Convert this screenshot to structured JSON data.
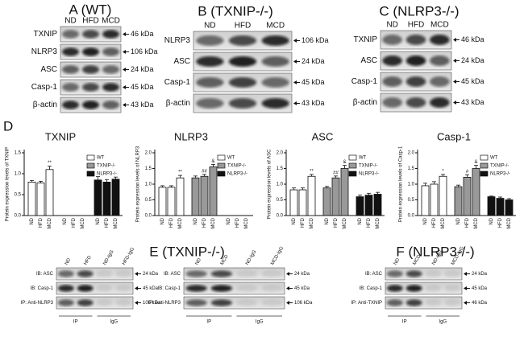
{
  "panels": {
    "A": {
      "title": "A (WT)",
      "lanes": [
        "ND",
        "HFD",
        "MCD"
      ],
      "rows": [
        {
          "label": "TXNIP",
          "kda": "46 kDa"
        },
        {
          "label": "NLRP3",
          "kda": "106 kDa"
        },
        {
          "label": "ASC",
          "kda": "24 kDa"
        },
        {
          "label": "Casp-1",
          "kda": "45 kDa"
        },
        {
          "label": "β-actin",
          "kda": "43 kDa"
        }
      ]
    },
    "B": {
      "title": "B (TXNIP-/-)",
      "lanes": [
        "ND",
        "HFD",
        "MCD"
      ],
      "rows": [
        {
          "label": "NLRP3",
          "kda": "106 kDa"
        },
        {
          "label": "ASC",
          "kda": "24 kDa"
        },
        {
          "label": "Casp-1",
          "kda": "45 kDa"
        },
        {
          "label": "β-actin",
          "kda": "43 kDa"
        }
      ]
    },
    "C": {
      "title": "C (NLRP3-/-)",
      "lanes": [
        "ND",
        "HFD",
        "MCD"
      ],
      "rows": [
        {
          "label": "TXNIP",
          "kda": "46 kDa"
        },
        {
          "label": "ASC",
          "kda": "24 kDa"
        },
        {
          "label": "Casp-1",
          "kda": "45 kDa"
        },
        {
          "label": "β-actin",
          "kda": "43 kDa"
        }
      ]
    },
    "D": {
      "label": "D"
    },
    "E": {
      "title": "E (TXNIP-/-)",
      "blots": [
        {
          "lanes": [
            "ND",
            "HFD",
            "ND-IgG",
            "HFD-IgG"
          ],
          "groups": [
            "IP",
            "IgG"
          ],
          "rows": [
            {
              "label": "IB: ASC",
              "kda": "24 kDa"
            },
            {
              "label": "IB: Casp-1",
              "kda": "45 kDa"
            },
            {
              "label": "IP: Anti-NLRP3",
              "kda": "106 kDa"
            }
          ]
        },
        {
          "lanes": [
            "ND",
            "MCD",
            "ND-IgG",
            "MCD-IgG"
          ],
          "groups": [
            "IP",
            "IgG"
          ],
          "rows": [
            {
              "label": "IB: ASC",
              "kda": "24 kDa"
            },
            {
              "label": "IB: Casp-1",
              "kda": "45 kDa"
            },
            {
              "label": "IP: Anti-NLRP3",
              "kda": "106 kDa"
            }
          ]
        }
      ]
    },
    "F": {
      "title": "F (NLRP3-/-)",
      "blots": [
        {
          "lanes": [
            "ND",
            "MCD",
            "ND-IgG",
            "MCD-IgG"
          ],
          "groups": [
            "IP",
            "IgG"
          ],
          "rows": [
            {
              "label": "IB: ASC",
              "kda": "24 kDa"
            },
            {
              "label": "IB: Casp-1",
              "kda": "45 kDa"
            },
            {
              "label": "IP: Anti-TXNIP",
              "kda": "46 kDa"
            }
          ]
        }
      ]
    }
  },
  "chart_data": [
    {
      "type": "bar",
      "title": "TXNIP",
      "y_label": "Protein expression levels of TXNIP",
      "categories": [
        "ND",
        "HFD",
        "MCD",
        "ND",
        "HFD",
        "MCD",
        "ND",
        "HFD",
        "MCD"
      ],
      "ylim": [
        0,
        1.5
      ],
      "yticks": [
        {
          "value": 0,
          "label": "0.0"
        },
        {
          "value": 0.5,
          "label": "0.5"
        },
        {
          "value": 1,
          "label": "1.0"
        },
        {
          "value": 1.5,
          "label": "1.5"
        }
      ],
      "series": [
        {
          "name": "WT",
          "color": "#ffffff",
          "values": [
            0.8,
            0.78,
            1.1,
            null,
            null,
            null,
            null,
            null,
            null
          ],
          "errors": [
            0.04,
            0.04,
            0.08,
            null,
            null,
            null,
            null,
            null,
            null
          ],
          "annotations": [
            null,
            null,
            "**",
            null,
            null,
            null,
            null,
            null,
            null
          ]
        },
        {
          "name": "TXNIP-/-",
          "color": "#999999",
          "values": [
            null,
            null,
            null,
            null,
            null,
            null,
            null,
            null,
            null
          ],
          "errors": [
            null,
            null,
            null,
            null,
            null,
            null,
            null,
            null,
            null
          ],
          "annotations": [
            null,
            null,
            null,
            null,
            null,
            null,
            null,
            null,
            null
          ]
        },
        {
          "name": "NLRP3-/-",
          "color": "#111111",
          "values": [
            null,
            null,
            null,
            null,
            null,
            null,
            0.85,
            0.8,
            0.87
          ],
          "errors": [
            null,
            null,
            null,
            null,
            null,
            null,
            0.08,
            0.06,
            0.05
          ],
          "annotations": [
            null,
            null,
            null,
            null,
            null,
            null,
            null,
            null,
            null
          ]
        }
      ]
    },
    {
      "type": "bar",
      "title": "NLRP3",
      "y_label": "Protein expression levels of NLRP3",
      "categories": [
        "ND",
        "HFD",
        "MCD",
        "ND",
        "HFD",
        "MCD",
        "ND",
        "HFD",
        "MCD"
      ],
      "ylim": [
        0,
        2
      ],
      "yticks": [
        {
          "value": 0,
          "label": "0.0"
        },
        {
          "value": 0.5,
          "label": "0.5"
        },
        {
          "value": 1,
          "label": "1.0"
        },
        {
          "value": 1.5,
          "label": "1.5"
        },
        {
          "value": 2,
          "label": "2.0"
        }
      ],
      "series": [
        {
          "name": "WT",
          "color": "#ffffff",
          "values": [
            0.9,
            0.9,
            1.2,
            null,
            null,
            null,
            null,
            null,
            null
          ],
          "errors": [
            0.05,
            0.05,
            0.08,
            null,
            null,
            null,
            null,
            null,
            null
          ],
          "annotations": [
            null,
            null,
            "**",
            null,
            null,
            null,
            null,
            null,
            null
          ]
        },
        {
          "name": "TXNIP-/-",
          "color": "#999999",
          "values": [
            null,
            null,
            null,
            1.2,
            1.25,
            1.55,
            null,
            null,
            null
          ],
          "errors": [
            null,
            null,
            null,
            0.06,
            0.06,
            0.08,
            null,
            null,
            null
          ],
          "annotations": [
            null,
            null,
            null,
            null,
            "##",
            "&",
            null,
            null,
            null
          ]
        },
        {
          "name": "NLRP3-/-",
          "color": "#111111",
          "values": [
            null,
            null,
            null,
            null,
            null,
            null,
            null,
            null,
            null
          ],
          "errors": [
            null,
            null,
            null,
            null,
            null,
            null,
            null,
            null,
            null
          ],
          "annotations": [
            null,
            null,
            null,
            null,
            null,
            null,
            null,
            null,
            null
          ]
        }
      ]
    },
    {
      "type": "bar",
      "title": "ASC",
      "y_label": "Protein expression levels of ASC",
      "categories": [
        "ND",
        "HFD",
        "MCD",
        "ND",
        "HFD",
        "MCD",
        "ND",
        "HFD",
        "MCD"
      ],
      "ylim": [
        0,
        2
      ],
      "yticks": [
        {
          "value": 0,
          "label": "0.0"
        },
        {
          "value": 0.5,
          "label": "0.5"
        },
        {
          "value": 1,
          "label": "1.0"
        },
        {
          "value": 1.5,
          "label": "1.5"
        },
        {
          "value": 2,
          "label": "2.0"
        }
      ],
      "series": [
        {
          "name": "WT",
          "color": "#ffffff",
          "values": [
            0.82,
            0.82,
            1.25,
            null,
            null,
            null,
            null,
            null,
            null
          ],
          "errors": [
            0.06,
            0.06,
            0.06,
            null,
            null,
            null,
            null,
            null,
            null
          ],
          "annotations": [
            null,
            null,
            "**",
            null,
            null,
            null,
            null,
            null,
            null
          ]
        },
        {
          "name": "TXNIP-/-",
          "color": "#999999",
          "values": [
            null,
            null,
            null,
            0.88,
            1.2,
            1.5,
            null,
            null,
            null
          ],
          "errors": [
            null,
            null,
            null,
            0.05,
            0.06,
            0.1,
            null,
            null,
            null
          ],
          "annotations": [
            null,
            null,
            null,
            null,
            "##",
            "&",
            null,
            null,
            null
          ]
        },
        {
          "name": "NLRP3-/-",
          "color": "#111111",
          "values": [
            null,
            null,
            null,
            null,
            null,
            null,
            0.6,
            0.65,
            0.68
          ],
          "errors": [
            null,
            null,
            null,
            null,
            null,
            null,
            0.05,
            0.06,
            0.06
          ],
          "annotations": [
            null,
            null,
            null,
            null,
            null,
            null,
            null,
            null,
            null
          ]
        }
      ]
    },
    {
      "type": "bar",
      "title": "Casp-1",
      "y_label": "Protein expression levels of Casp-1",
      "categories": [
        "ND",
        "HFD",
        "MCD",
        "ND",
        "HFD",
        "MCD",
        "ND",
        "HFD",
        "MCD"
      ],
      "ylim": [
        0,
        2
      ],
      "yticks": [
        {
          "value": 0,
          "label": "0.0"
        },
        {
          "value": 0.5,
          "label": "0.5"
        },
        {
          "value": 1,
          "label": "1.0"
        },
        {
          "value": 1.5,
          "label": "1.5"
        },
        {
          "value": 2,
          "label": "2.0"
        }
      ],
      "series": [
        {
          "name": "WT",
          "color": "#ffffff",
          "values": [
            0.95,
            1.0,
            1.25,
            null,
            null,
            null,
            null,
            null,
            null
          ],
          "errors": [
            0.08,
            0.08,
            0.06,
            null,
            null,
            null,
            null,
            null,
            null
          ],
          "annotations": [
            null,
            null,
            "*",
            null,
            null,
            null,
            null,
            null,
            null
          ]
        },
        {
          "name": "TXNIP-/-",
          "color": "#999999",
          "values": [
            null,
            null,
            null,
            0.92,
            1.22,
            1.5,
            null,
            null,
            null
          ],
          "errors": [
            null,
            null,
            null,
            0.05,
            0.08,
            0.1,
            null,
            null,
            null
          ],
          "annotations": [
            null,
            null,
            null,
            null,
            "#",
            "&",
            null,
            null,
            null
          ]
        },
        {
          "name": "NLRP3-/-",
          "color": "#111111",
          "values": [
            null,
            null,
            null,
            null,
            null,
            null,
            0.6,
            0.55,
            0.5
          ],
          "errors": [
            null,
            null,
            null,
            null,
            null,
            null,
            0.02,
            0.04,
            0.04
          ],
          "annotations": [
            null,
            null,
            null,
            null,
            null,
            null,
            null,
            null,
            null
          ]
        }
      ]
    }
  ]
}
